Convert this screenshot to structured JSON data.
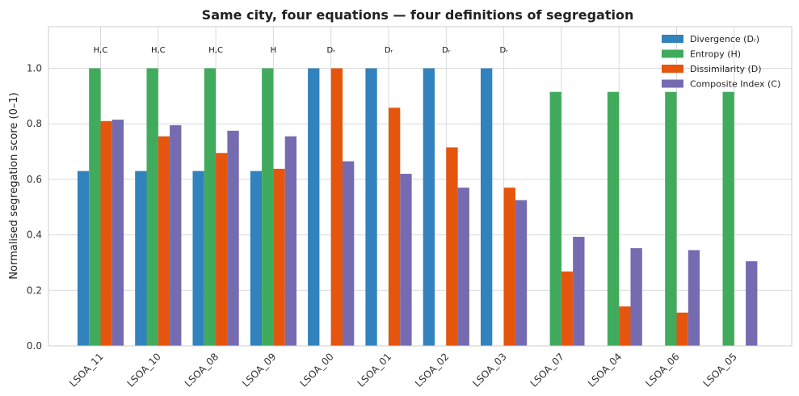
{
  "chart_data": {
    "type": "bar",
    "title": "Same city, four equations — four definitions of segregation",
    "xlabel": "",
    "ylabel": "Normalised segregation score (0–1)",
    "ylim": [
      0,
      1.15
    ],
    "yticks": [
      "0.0",
      "0.2",
      "0.4",
      "0.6",
      "0.8",
      "1.0"
    ],
    "grid": true,
    "legend_position": "top-right",
    "categories": [
      "LSOA_11",
      "LSOA_10",
      "LSOA_08",
      "LSOA_09",
      "LSOA_00",
      "LSOA_01",
      "LSOA_02",
      "LSOA_03",
      "LSOA_07",
      "LSOA_04",
      "LSOA_06",
      "LSOA_05"
    ],
    "series": [
      {
        "name": "Divergence (Dᵣ)",
        "color": "#3182bd",
        "values": [
          0.63,
          0.63,
          0.63,
          0.63,
          1.0,
          1.0,
          1.0,
          1.0,
          0.0,
          0.0,
          0.0,
          0.0
        ]
      },
      {
        "name": "Entropy (H)",
        "color": "#41ab5d",
        "values": [
          1.0,
          1.0,
          1.0,
          1.0,
          0.0,
          0.0,
          0.0,
          0.0,
          0.915,
          0.915,
          0.915,
          0.915
        ]
      },
      {
        "name": "Dissimilarity (D)",
        "color": "#e6550d",
        "values": [
          0.81,
          0.755,
          0.695,
          0.638,
          1.0,
          0.858,
          0.715,
          0.57,
          0.268,
          0.142,
          0.12,
          0.0
        ]
      },
      {
        "name": "Composite Index (C)",
        "color": "#756bb1",
        "values": [
          0.815,
          0.795,
          0.775,
          0.755,
          0.665,
          0.62,
          0.57,
          0.525,
          0.393,
          0.352,
          0.345,
          0.305
        ]
      }
    ],
    "annotations": [
      "H,C",
      "H,C",
      "H,C",
      "H",
      "Dᵣ",
      "Dᵣ",
      "Dᵣ",
      "Dᵣ",
      "",
      "",
      "",
      ""
    ]
  }
}
